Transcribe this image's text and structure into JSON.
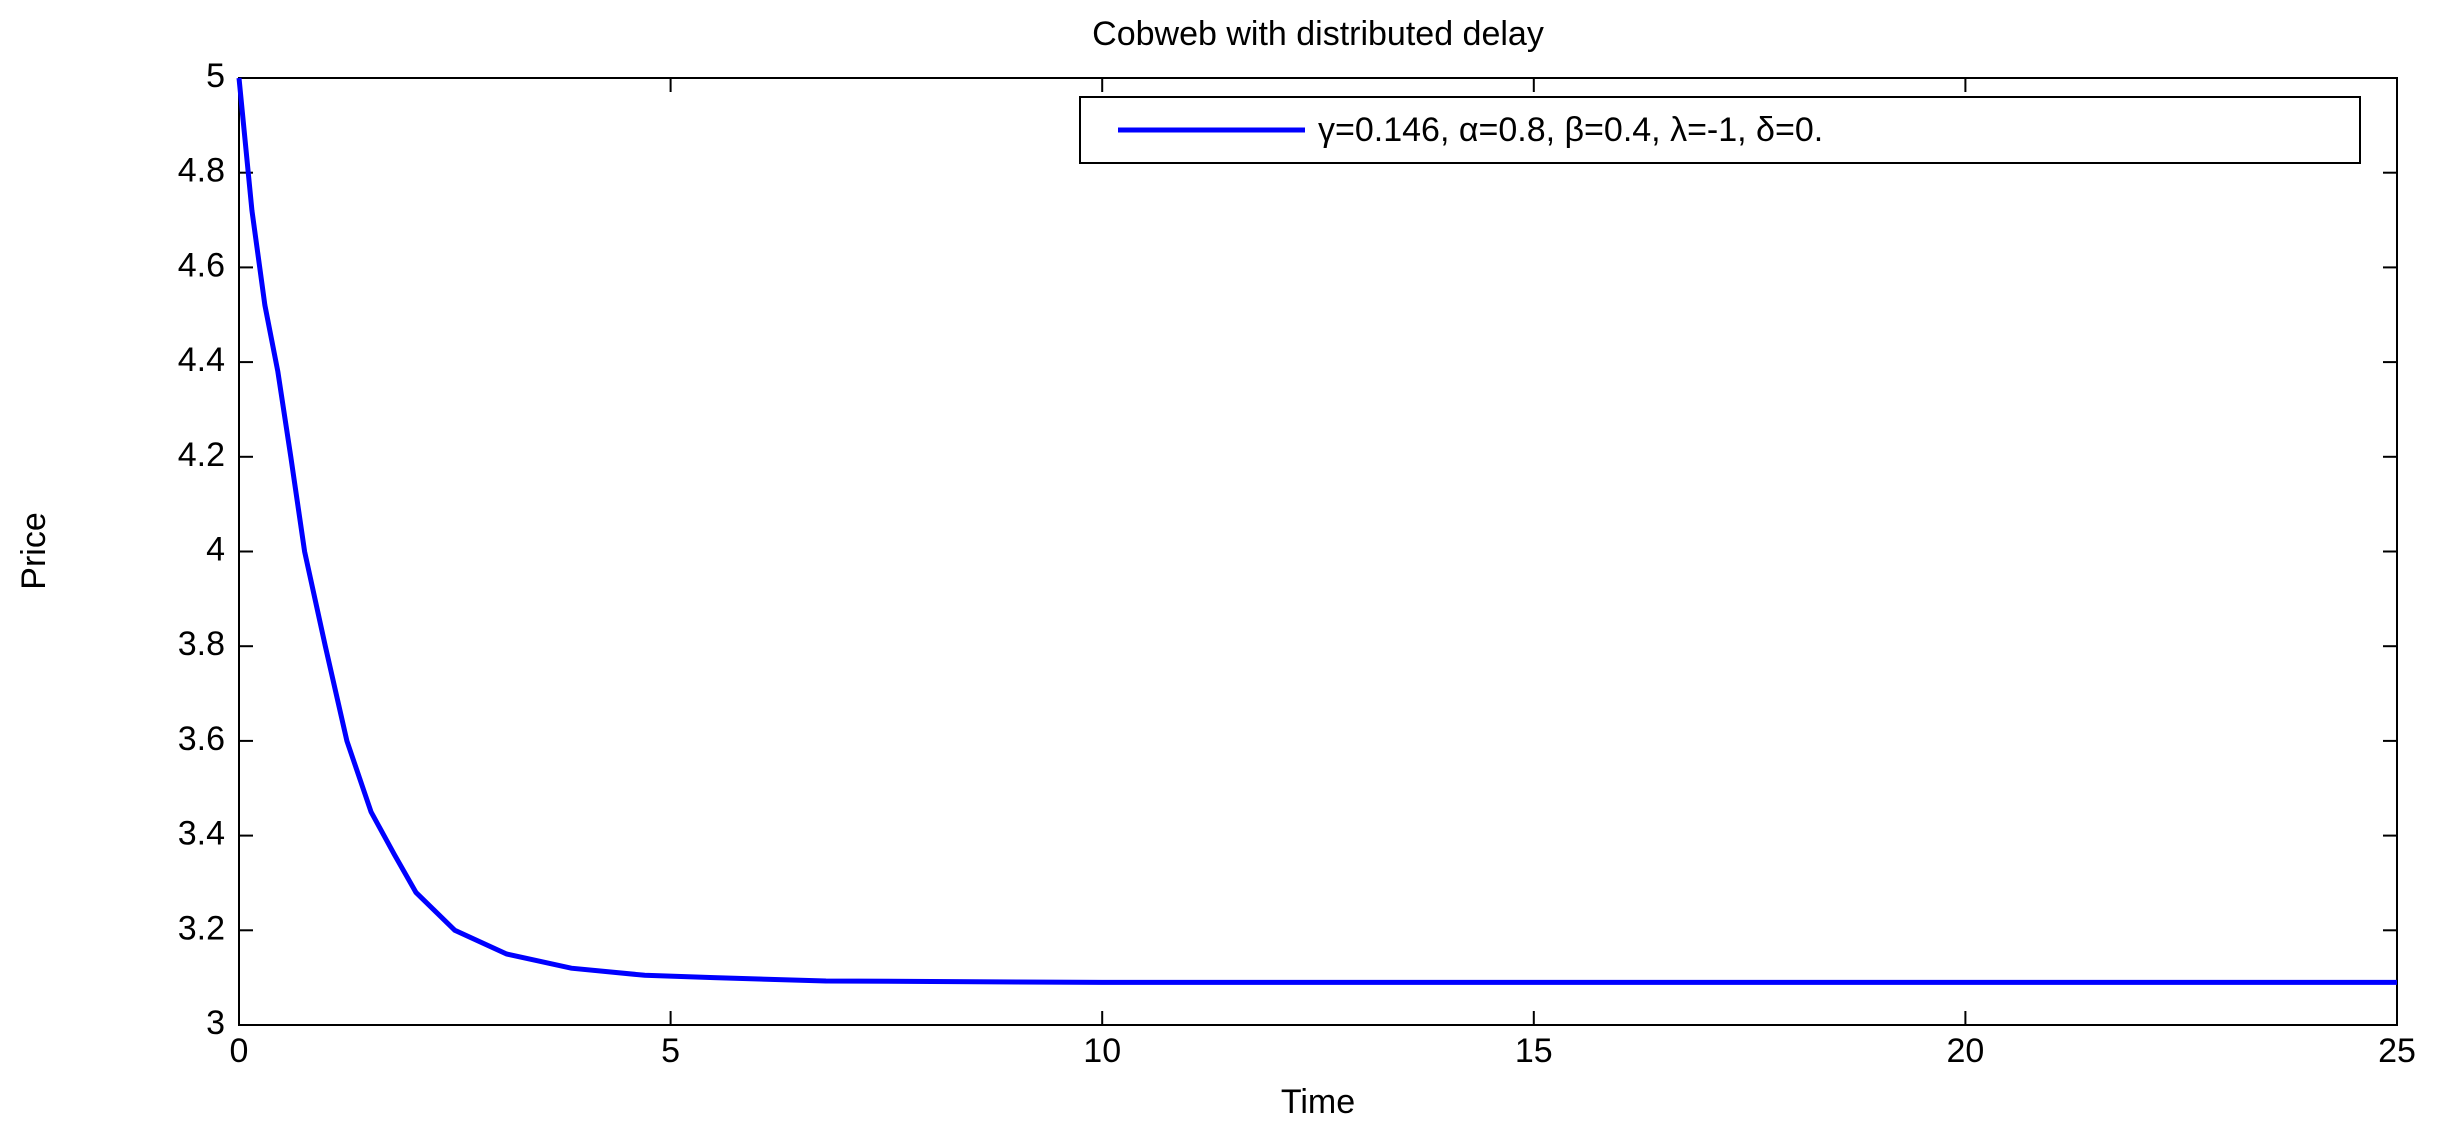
{
  "chart_data": {
    "type": "line",
    "title": "Cobweb with distributed delay",
    "x_label": "Time",
    "y_label": "Price",
    "x": [
      0,
      0.15,
      0.3,
      0.45,
      0.6,
      0.76,
      1.0,
      1.25,
      1.53,
      1.8,
      2.05,
      2.5,
      3.1,
      3.85,
      4.7,
      5.5,
      6.8,
      10,
      15,
      20,
      25
    ],
    "series": [
      {
        "name": "γ=0.146, α=0.8, β=0.4, λ=-1, δ=0.",
        "color": "#0000ff",
        "values": [
          5,
          4.72,
          4.52,
          4.38,
          4.2,
          4.0,
          3.8,
          3.6,
          3.45,
          3.36,
          3.28,
          3.2,
          3.15,
          3.12,
          3.105,
          3.1,
          3.093,
          3.09,
          3.09,
          3.09,
          3.09
        ]
      }
    ],
    "xlim": [
      0,
      25
    ],
    "xticks": [
      0,
      5,
      10,
      15,
      20,
      25
    ],
    "ylim": [
      3,
      5
    ],
    "yticks": [
      3,
      3.2,
      3.4,
      3.6,
      3.8,
      4,
      4.2,
      4.4,
      4.6,
      4.8,
      5
    ],
    "grid": false,
    "legend": "upper right"
  }
}
